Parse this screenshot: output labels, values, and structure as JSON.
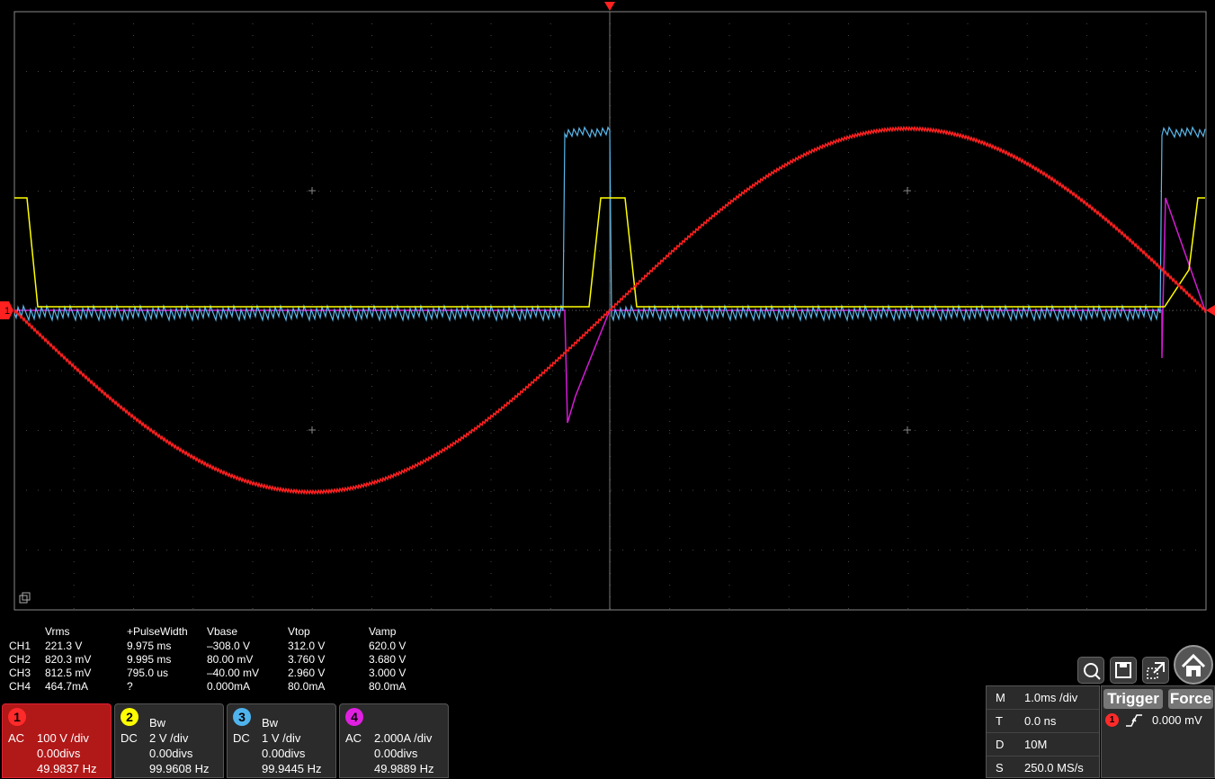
{
  "measurements": {
    "headers": [
      "Vrms",
      "+PulseWidth",
      "Vbase",
      "Vtop",
      "Vamp"
    ],
    "rows": [
      {
        "ch": "CH1",
        "values": [
          "221.3 V",
          "9.975 ms",
          "–308.0 V",
          "312.0 V",
          "620.0 V"
        ]
      },
      {
        "ch": "CH2",
        "values": [
          "820.3 mV",
          "9.995 ms",
          "80.00 mV",
          "3.760 V",
          "3.680 V"
        ]
      },
      {
        "ch": "CH3",
        "values": [
          "812.5 mV",
          "795.0 us",
          "–40.00 mV",
          "2.960 V",
          "3.000 V"
        ]
      },
      {
        "ch": "CH4",
        "values": [
          "464.7mA",
          "?",
          "0.000mA",
          "80.0mA",
          "80.0mA"
        ]
      }
    ]
  },
  "channels": [
    {
      "num": "1",
      "coupling": "AC",
      "bw": "",
      "scale": "100 V /div",
      "offset": "0.00divs",
      "freq": "49.9837 Hz",
      "color": "#ff2a2a",
      "selected": true
    },
    {
      "num": "2",
      "coupling": "DC",
      "bw": "Bw",
      "scale": "2 V /div",
      "offset": "0.00divs",
      "freq": "99.9608 Hz",
      "color": "#ffff00",
      "selected": false
    },
    {
      "num": "3",
      "coupling": "DC",
      "bw": "Bw",
      "scale": "1 V /div",
      "offset": "0.00divs",
      "freq": "99.9445 Hz",
      "color": "#4fb4ee",
      "selected": false
    },
    {
      "num": "4",
      "coupling": "AC",
      "bw": "",
      "scale": "2.000A /div",
      "offset": "0.00divs",
      "freq": "49.9889 Hz",
      "color": "#e020e0",
      "selected": false
    }
  ],
  "horizontal": {
    "M": {
      "key": "M",
      "value": "1.0ms /div"
    },
    "T": {
      "key": "T",
      "value": "0.0 ns"
    },
    "D": {
      "key": "D",
      "value": "10M"
    },
    "S": {
      "key": "S",
      "value": "250.0 MS/s"
    }
  },
  "trigger": {
    "trigger_label": "Trigger",
    "force_label": "Force",
    "source": "1",
    "level": "0.000 mV"
  },
  "icons": [
    "zoom-icon",
    "save-icon",
    "export-icon",
    "home-icon"
  ],
  "ch1_marker": "1"
}
